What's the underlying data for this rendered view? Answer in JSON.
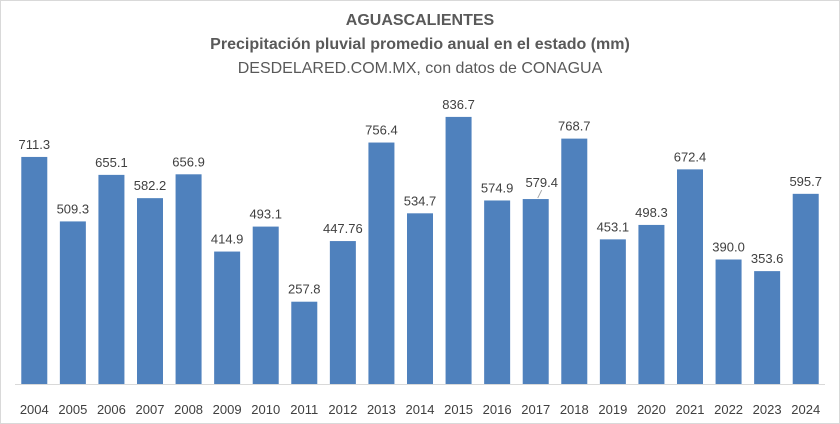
{
  "chart_data": {
    "type": "bar",
    "title": "AGUASCALIENTES",
    "subtitle": "Precipitación pluvial promedio anual en el estado (mm)",
    "source": "DESDELARED.COM.MX, con datos de CONAGUA",
    "categories": [
      "2004",
      "2005",
      "2006",
      "2007",
      "2008",
      "2009",
      "2010",
      "2011",
      "2012",
      "2013",
      "2014",
      "2015",
      "2016",
      "2017",
      "2018",
      "2019",
      "2020",
      "2021",
      "2022",
      "2023",
      "2024"
    ],
    "values": [
      711.3,
      509.3,
      655.1,
      582.2,
      656.9,
      414.9,
      493.1,
      257.8,
      447.76,
      756.4,
      534.7,
      836.7,
      574.9,
      579.4,
      768.7,
      453.1,
      498.3,
      672.4,
      390.0,
      353.6,
      595.7
    ],
    "labels": [
      "711.3",
      "509.3",
      "655.1",
      "582.2",
      "656.9",
      "414.9",
      "493.1",
      "257.8",
      "447.76",
      "756.4",
      "534.7",
      "836.7",
      "574.9",
      "579.4",
      "768.7",
      "453.1",
      "498.3",
      "672.4",
      "390.0",
      "353.6",
      "595.7"
    ],
    "xlabel": "",
    "ylabel": "",
    "ylim": [
      0,
      900
    ],
    "grid": false,
    "legend": "none",
    "bar_color": "#4f81bd"
  }
}
